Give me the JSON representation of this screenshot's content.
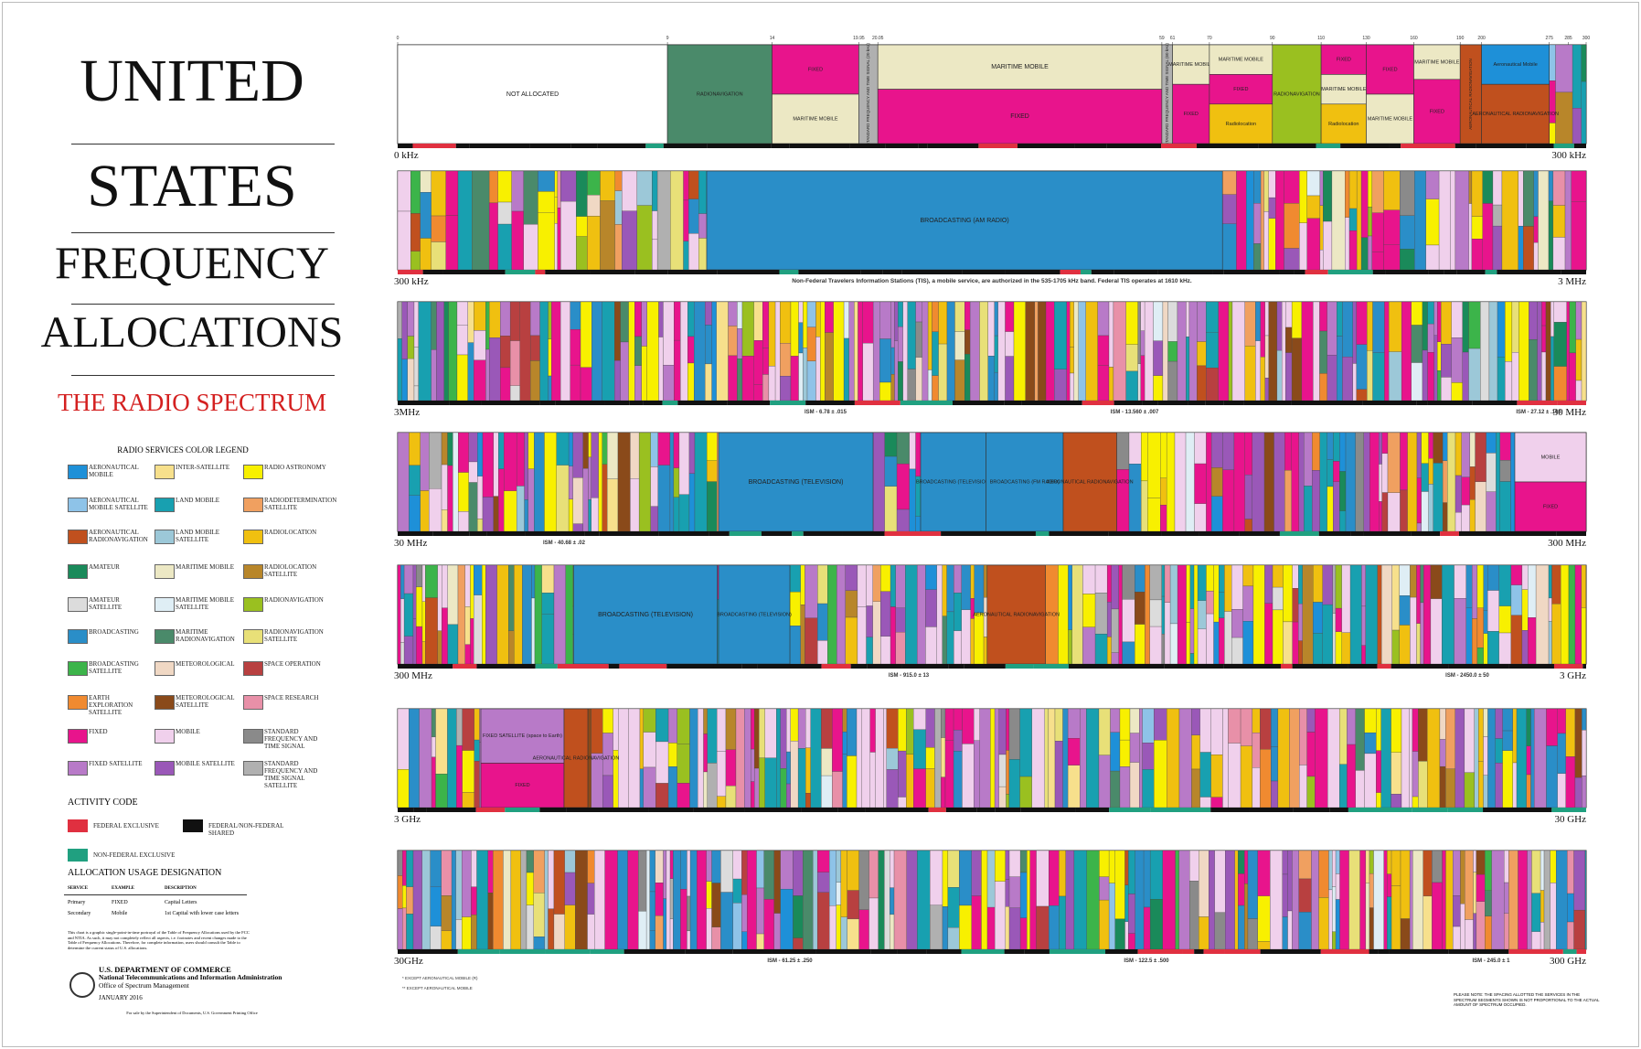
{
  "header": {
    "title_lines": [
      "UNITED",
      "STATES",
      "FREQUENCY",
      "ALLOCATIONS"
    ],
    "subtitle": "THE RADIO SPECTRUM"
  },
  "legend": {
    "title": "RADIO SERVICES COLOR LEGEND",
    "items": [
      {
        "label": "AERONAUTICAL MOBILE",
        "color": "#1e90d8"
      },
      {
        "label": "AERONAUTICAL MOBILE SATELLITE",
        "color": "#8ec3e8"
      },
      {
        "label": "AERONAUTICAL RADIONAVIGATION",
        "color": "#c0501e"
      },
      {
        "label": "AMATEUR",
        "color": "#1a8a5a"
      },
      {
        "label": "AMATEUR SATELLITE",
        "color": "#dcdcdc"
      },
      {
        "label": "BROADCASTING",
        "color": "#2a8ec8"
      },
      {
        "label": "BROADCASTING SATELLITE",
        "color": "#3cb44a"
      },
      {
        "label": "EARTH EXPLORATION SATELLITE",
        "color": "#f08a30"
      },
      {
        "label": "FIXED",
        "color": "#e8148c"
      },
      {
        "label": "FIXED SATELLITE",
        "color": "#b87ac8"
      },
      {
        "label": "INTER-SATELLITE",
        "color": "#f7e08c"
      },
      {
        "label": "LAND MOBILE",
        "color": "#18a0b0"
      },
      {
        "label": "LAND MOBILE SATELLITE",
        "color": "#9cc8d8"
      },
      {
        "label": "MARITIME MOBILE",
        "color": "#ece8c4"
      },
      {
        "label": "MARITIME MOBILE SATELLITE",
        "color": "#dfeef5"
      },
      {
        "label": "MARITIME RADIONAVIGATION",
        "color": "#4a8a6a"
      },
      {
        "label": "METEOROLOGICAL",
        "color": "#f0d8c4"
      },
      {
        "label": "METEOROLOGICAL SATELLITE",
        "color": "#8a4a1a"
      },
      {
        "label": "MOBILE",
        "color": "#f0d0ec"
      },
      {
        "label": "MOBILE SATELLITE",
        "color": "#9a58b8"
      },
      {
        "label": "RADIO ASTRONOMY",
        "color": "#f8f000"
      },
      {
        "label": "RADIODETERMINATION SATELLITE",
        "color": "#f0a060"
      },
      {
        "label": "RADIOLOCATION",
        "color": "#f0c010"
      },
      {
        "label": "RADIOLOCATION SATELLITE",
        "color": "#b8862a"
      },
      {
        "label": "RADIONAVIGATION",
        "color": "#9ac020"
      },
      {
        "label": "RADIONAVIGATION SATELLITE",
        "color": "#e8e078"
      },
      {
        "label": "SPACE OPERATION",
        "color": "#b84040"
      },
      {
        "label": "SPACE RESEARCH",
        "color": "#e890a8"
      },
      {
        "label": "STANDARD FREQUENCY AND TIME SIGNAL",
        "color": "#8a8a8a"
      },
      {
        "label": "STANDARD FREQUENCY AND TIME SIGNAL SATELLITE",
        "color": "#b0b0b0"
      }
    ]
  },
  "activity_code": {
    "title": "ACTIVITY CODE",
    "items": [
      {
        "label": "FEDERAL EXCLUSIVE",
        "color": "#e03040"
      },
      {
        "label": "FEDERAL/NON-FEDERAL SHARED",
        "color": "#111111"
      },
      {
        "label": "NON-FEDERAL EXCLUSIVE",
        "color": "#20a080"
      }
    ]
  },
  "usage": {
    "title": "ALLOCATION USAGE DESIGNATION",
    "columns": [
      "SERVICE",
      "EXAMPLE",
      "DESCRIPTION"
    ],
    "rows": [
      [
        "Primary",
        "FIXED",
        "Capital Letters"
      ],
      [
        "Secondary",
        "Mobile",
        "1st Capital with lower case letters"
      ]
    ]
  },
  "disclaimer": "This chart is a graphic single-point-in-time portrayal of the Table of Frequency Allocations used by the FCC and NTIA. As such, it may not completely reflect all aspects, i.e. footnotes and recent changes made to the Table of Frequency Allocations. Therefore, for complete information, users should consult the Table to determine the current status of U.S. allocations.",
  "footer": {
    "department": "U.S. DEPARTMENT OF COMMERCE",
    "agency": "National Telecommunications and Information Administration",
    "office": "Office of Spectrum Management",
    "date": "JANUARY 2016",
    "printing": "For sale by the Superintendent of Documents, U.S. Government Printing Office"
  },
  "footnotes": [
    "* EXCEPT AERONAUTICAL MOBILE (R)",
    "** EXCEPT AERONAUTICAL MOBILE"
  ],
  "spacing_note": "PLEASE NOTE: THE SPACING ALLOTTED THE SERVICES IN THE SPECTRUM SEGMENTS SHOWN IS NOT PROPORTIONAL TO THE ACTUAL AMOUNT OF SPECTRUM OCCUPIED.",
  "bands": [
    {
      "start": "0 kHz",
      "end": "300 kHz",
      "notes": [],
      "ticks": [
        0,
        9,
        14,
        19.95,
        20.05,
        59,
        61,
        70,
        90,
        110,
        130,
        160,
        190,
        200,
        275,
        285,
        300
      ],
      "cells": [
        {
          "label": "NOT ALLOCATED",
          "color": "#ffffff"
        },
        {
          "label": "RADIONAVIGATION",
          "color": "#4a8a6a"
        },
        {
          "label": "FIXED",
          "color": "#e8148c"
        },
        {
          "label": "MARITIME MOBILE",
          "color": "#ece8c4"
        },
        {
          "label": "STANDARD FREQUENCY AND TIME SIGNAL (20 kHz)",
          "color": "#b0b0b0"
        },
        {
          "label": "MARITIME MOBILE",
          "color": "#ece8c4"
        },
        {
          "label": "FIXED",
          "color": "#e8148c"
        },
        {
          "label": "STANDARD FREQUENCY AND TIME SIGNAL (60 kHz)",
          "color": "#b0b0b0"
        },
        {
          "label": "MARITIME MOBILE",
          "color": "#ece8c4"
        },
        {
          "label": "FIXED",
          "color": "#e8148c"
        },
        {
          "label": "MARITIME MOBILE",
          "color": "#ece8c4"
        },
        {
          "label": "FIXED",
          "color": "#e8148c"
        },
        {
          "label": "Radiolocation",
          "color": "#f0c010"
        },
        {
          "label": "RADIONAVIGATION",
          "color": "#9ac020"
        },
        {
          "label": "FIXED",
          "color": "#e8148c"
        },
        {
          "label": "MARITIME MOBILE",
          "color": "#ece8c4"
        },
        {
          "label": "Radiolocation",
          "color": "#f0c010"
        },
        {
          "label": "FIXED",
          "color": "#e8148c"
        },
        {
          "label": "MARITIME MOBILE",
          "color": "#ece8c4"
        },
        {
          "label": "MARITIME MOBILE",
          "color": "#ece8c4"
        },
        {
          "label": "FIXED",
          "color": "#e8148c"
        },
        {
          "label": "AERONAUTICAL RADIONAVIGATION",
          "color": "#c0501e"
        },
        {
          "label": "Aeronautical Mobile",
          "color": "#1e90d8"
        },
        {
          "label": "AERONAUTICAL RADIONAVIGATION",
          "color": "#c0501e"
        }
      ]
    },
    {
      "start": "300 kHz",
      "end": "3 MHz",
      "notes": [
        "Non-Federal Travelers Information Stations (TIS), a mobile service, are authorized in the 535-1705 kHz band. Federal TIS operates at 1610 kHz."
      ],
      "ticks": [],
      "cells": [
        {
          "label": "BROADCASTING (AM RADIO)",
          "color": "#2a8ec8"
        }
      ]
    },
    {
      "start": "3MHz",
      "end": "30 MHz",
      "notes": [
        "ISM - 6.78 ± .015",
        "ISM - 13.560 ± .007",
        "ISM - 27.12 ± .163"
      ],
      "ticks": [],
      "cells": []
    },
    {
      "start": "30 MHz",
      "end": "300 MHz",
      "notes": [
        "ISM - 40.68 ± .02"
      ],
      "ticks": [],
      "cells": [
        {
          "label": "BROADCASTING (TELEVISION)",
          "color": "#2a8ec8"
        },
        {
          "label": "BROADCASTING (TELEVISION)",
          "color": "#2a8ec8"
        },
        {
          "label": "BROADCASTING (FM RADIO)",
          "color": "#2a8ec8"
        },
        {
          "label": "AERONAUTICAL RADIONAVIGATION",
          "color": "#c0501e"
        },
        {
          "label": "MOBILE",
          "color": "#f0d0ec"
        },
        {
          "label": "FIXED",
          "color": "#e8148c"
        }
      ]
    },
    {
      "start": "300 MHz",
      "end": "3 GHz",
      "notes": [
        "ISM - 915.0 ± 13",
        "ISM - 2450.0 ± 50"
      ],
      "ticks": [],
      "cells": [
        {
          "label": "BROADCASTING (TELEVISION)",
          "color": "#2a8ec8"
        },
        {
          "label": "BROADCASTING (TELEVISION)",
          "color": "#2a8ec8"
        },
        {
          "label": "AERONAUTICAL RADIONAVIGATION",
          "color": "#c0501e"
        }
      ]
    },
    {
      "start": "3 GHz",
      "end": "30 GHz",
      "notes": [],
      "ticks": [],
      "cells": [
        {
          "label": "FIXED SATELLITE (space to Earth)",
          "color": "#b87ac8"
        },
        {
          "label": "FIXED",
          "color": "#e8148c"
        },
        {
          "label": "AERONAUTICAL RADIONAVIGATION",
          "color": "#c0501e"
        }
      ]
    },
    {
      "start": "30GHz",
      "end": "300 GHz",
      "notes": [
        "ISM - 61.25 ± .250",
        "ISM - 122.5 ± .500",
        "ISM - 245.0 ± 1"
      ],
      "ticks": [],
      "cells": []
    }
  ]
}
